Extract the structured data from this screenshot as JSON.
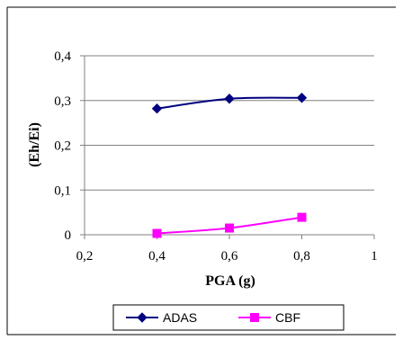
{
  "chart_data": {
    "type": "line",
    "title": "",
    "xlabel": "PGA (g)",
    "ylabel": "(Eh/Ei)",
    "xlim": [
      0.2,
      1.0
    ],
    "ylim": [
      0,
      0.4
    ],
    "x_ticks": [
      0.2,
      0.4,
      0.6,
      0.8,
      1.0
    ],
    "x_tick_labels": [
      "0,2",
      "0,4",
      "0,6",
      "0,8",
      "1"
    ],
    "y_ticks": [
      0,
      0.1,
      0.2,
      0.3,
      0.4
    ],
    "y_tick_labels": [
      "0",
      "0,1",
      "0,2",
      "0,3",
      "0,4"
    ],
    "grid": "horizontal",
    "legend_position": "bottom",
    "series": [
      {
        "name": "ADAS",
        "x": [
          0.4,
          0.6,
          0.8
        ],
        "y": [
          0.282,
          0.304,
          0.306
        ],
        "color": "#000080",
        "marker": "diamond"
      },
      {
        "name": "CBF",
        "x": [
          0.4,
          0.6,
          0.8
        ],
        "y": [
          0.003,
          0.015,
          0.039
        ],
        "color": "#FF00FF",
        "marker": "square"
      }
    ]
  }
}
